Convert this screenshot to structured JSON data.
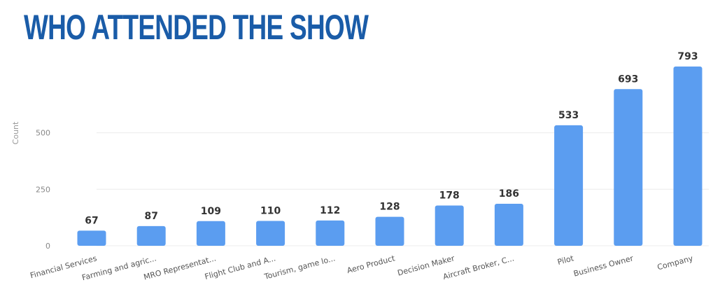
{
  "colors": {
    "title": "#1a5ca8",
    "bar": "#5b9df0",
    "grid": "#ececec"
  },
  "chart_data": {
    "type": "bar",
    "title": "WHO ATTENDED THE SHOW",
    "xlabel": "",
    "ylabel": "Count",
    "categories": [
      "Financial Services",
      "Farming and agric...",
      "MRO Representat...",
      "Flight Club and A...",
      "Tourism, game lo...",
      "Aero Product",
      "Decision Maker",
      "Aircraft Broker, C...",
      "Pilot",
      "Business Owner",
      "Company"
    ],
    "values": [
      67,
      87,
      109,
      110,
      112,
      128,
      178,
      186,
      533,
      693,
      793
    ],
    "yticks": [
      0,
      250,
      500
    ],
    "ylim": [
      0,
      793
    ],
    "grid": true,
    "data_labels": true,
    "legend": "none"
  }
}
